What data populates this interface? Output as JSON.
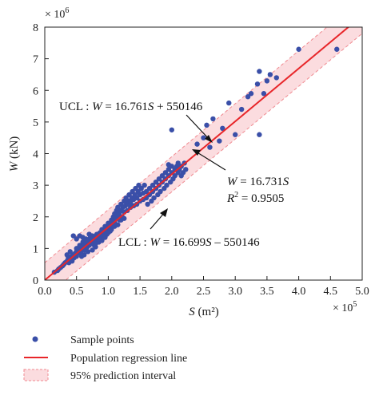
{
  "chart_data": {
    "type": "scatter",
    "x_axis": {
      "label_var": "S",
      "label_unit": "(m²)",
      "range": [
        0.0,
        5.0
      ],
      "ticks": [
        "0.0",
        "0.5",
        "1.0",
        "1.5",
        "2.0",
        "2.5",
        "3.0",
        "3.5",
        "4.0",
        "4.5",
        "5.0"
      ],
      "multiplier": "× 10",
      "multiplier_exp": "5"
    },
    "y_axis": {
      "label_var": "W",
      "label_unit": "(kN)",
      "range": [
        0,
        8
      ],
      "ticks": [
        "0",
        "1",
        "2",
        "3",
        "4",
        "5",
        "6",
        "7",
        "8"
      ],
      "multiplier": "× 10",
      "multiplier_exp": "6"
    },
    "regression": {
      "slope": 1.6731,
      "intercept": 0
    },
    "ucl": {
      "slope": 1.6761,
      "intercept": 0.550146
    },
    "lcl": {
      "slope": 1.6699,
      "intercept": -0.550146
    },
    "points": [
      [
        0.15,
        0.25
      ],
      [
        0.2,
        0.3
      ],
      [
        0.22,
        0.35
      ],
      [
        0.25,
        0.4
      ],
      [
        0.28,
        0.45
      ],
      [
        0.3,
        0.5
      ],
      [
        0.32,
        0.55
      ],
      [
        0.35,
        0.6
      ],
      [
        0.37,
        0.7
      ],
      [
        0.38,
        0.55
      ],
      [
        0.4,
        0.65
      ],
      [
        0.42,
        0.75
      ],
      [
        0.43,
        0.6
      ],
      [
        0.45,
        0.8
      ],
      [
        0.46,
        0.7
      ],
      [
        0.48,
        0.85
      ],
      [
        0.5,
        0.9
      ],
      [
        0.5,
        0.75
      ],
      [
        0.52,
        1.0
      ],
      [
        0.53,
        0.85
      ],
      [
        0.55,
        0.95
      ],
      [
        0.55,
        1.1
      ],
      [
        0.57,
        0.9
      ],
      [
        0.58,
        1.05
      ],
      [
        0.6,
        1.0
      ],
      [
        0.6,
        1.2
      ],
      [
        0.62,
        1.1
      ],
      [
        0.63,
        0.95
      ],
      [
        0.65,
        1.15
      ],
      [
        0.65,
        1.3
      ],
      [
        0.67,
        1.05
      ],
      [
        0.68,
        1.2
      ],
      [
        0.7,
        1.25
      ],
      [
        0.7,
        1.1
      ],
      [
        0.72,
        1.35
      ],
      [
        0.73,
        1.15
      ],
      [
        0.75,
        1.2
      ],
      [
        0.75,
        1.4
      ],
      [
        0.77,
        1.3
      ],
      [
        0.78,
        1.1
      ],
      [
        0.8,
        1.35
      ],
      [
        0.8,
        1.25
      ],
      [
        0.82,
        1.45
      ],
      [
        0.83,
        1.3
      ],
      [
        0.85,
        1.4
      ],
      [
        0.85,
        1.2
      ],
      [
        0.87,
        1.5
      ],
      [
        0.88,
        1.35
      ],
      [
        0.9,
        1.45
      ],
      [
        0.9,
        1.6
      ],
      [
        0.92,
        1.4
      ],
      [
        0.93,
        1.55
      ],
      [
        0.95,
        1.5
      ],
      [
        0.95,
        1.7
      ],
      [
        0.97,
        1.6
      ],
      [
        0.98,
        1.45
      ],
      [
        1.0,
        1.65
      ],
      [
        1.0,
        1.8
      ],
      [
        1.02,
        1.7
      ],
      [
        1.03,
        1.55
      ],
      [
        1.05,
        1.75
      ],
      [
        1.05,
        1.9
      ],
      [
        1.07,
        1.8
      ],
      [
        1.08,
        2.0
      ],
      [
        1.1,
        1.85
      ],
      [
        1.1,
        2.1
      ],
      [
        1.12,
        1.95
      ],
      [
        1.13,
        2.2
      ],
      [
        1.15,
        2.0
      ],
      [
        1.15,
        2.3
      ],
      [
        1.17,
        2.1
      ],
      [
        1.18,
        1.9
      ],
      [
        1.2,
        2.2
      ],
      [
        1.2,
        2.4
      ],
      [
        1.22,
        2.0
      ],
      [
        1.23,
        2.3
      ],
      [
        1.25,
        2.5
      ],
      [
        1.25,
        2.15
      ],
      [
        1.27,
        2.35
      ],
      [
        1.28,
        2.6
      ],
      [
        1.3,
        2.4
      ],
      [
        1.3,
        2.2
      ],
      [
        1.32,
        2.5
      ],
      [
        1.33,
        2.7
      ],
      [
        1.35,
        2.45
      ],
      [
        1.35,
        2.3
      ],
      [
        1.37,
        2.6
      ],
      [
        1.38,
        2.8
      ],
      [
        1.4,
        2.55
      ],
      [
        1.4,
        2.35
      ],
      [
        1.42,
        2.7
      ],
      [
        1.43,
        2.9
      ],
      [
        1.45,
        2.6
      ],
      [
        1.45,
        2.4
      ],
      [
        1.47,
        2.8
      ],
      [
        1.48,
        3.0
      ],
      [
        1.5,
        2.7
      ],
      [
        1.5,
        2.5
      ],
      [
        1.52,
        2.9
      ],
      [
        1.55,
        2.75
      ],
      [
        1.55,
        2.55
      ],
      [
        1.57,
        3.0
      ],
      [
        1.6,
        2.8
      ],
      [
        1.6,
        2.6
      ],
      [
        1.62,
        2.4
      ],
      [
        1.65,
        2.9
      ],
      [
        1.65,
        2.7
      ],
      [
        1.68,
        2.5
      ],
      [
        1.7,
        3.0
      ],
      [
        1.7,
        2.8
      ],
      [
        1.72,
        2.6
      ],
      [
        1.75,
        3.1
      ],
      [
        1.75,
        2.9
      ],
      [
        1.78,
        2.7
      ],
      [
        1.8,
        3.2
      ],
      [
        1.8,
        3.0
      ],
      [
        1.82,
        2.8
      ],
      [
        1.85,
        3.3
      ],
      [
        1.85,
        3.1
      ],
      [
        1.88,
        2.9
      ],
      [
        1.9,
        3.4
      ],
      [
        1.9,
        3.2
      ],
      [
        1.92,
        3.0
      ],
      [
        1.95,
        3.5
      ],
      [
        1.95,
        3.3
      ],
      [
        1.98,
        3.1
      ],
      [
        2.0,
        3.6
      ],
      [
        2.0,
        3.4
      ],
      [
        2.02,
        3.2
      ],
      [
        2.05,
        3.5
      ],
      [
        2.05,
        3.3
      ],
      [
        2.08,
        3.6
      ],
      [
        2.1,
        3.4
      ],
      [
        2.1,
        3.7
      ],
      [
        2.12,
        3.5
      ],
      [
        2.15,
        3.3
      ],
      [
        2.15,
        3.6
      ],
      [
        2.18,
        3.4
      ],
      [
        2.2,
        3.7
      ],
      [
        2.22,
        3.5
      ],
      [
        2.0,
        4.75
      ],
      [
        1.95,
        3.65
      ],
      [
        2.4,
        4.3
      ],
      [
        2.5,
        4.5
      ],
      [
        2.55,
        4.9
      ],
      [
        2.6,
        4.2
      ],
      [
        2.65,
        5.1
      ],
      [
        2.75,
        4.4
      ],
      [
        2.8,
        4.8
      ],
      [
        2.9,
        5.6
      ],
      [
        3.0,
        4.6
      ],
      [
        3.1,
        5.4
      ],
      [
        3.2,
        5.8
      ],
      [
        3.25,
        5.9
      ],
      [
        3.35,
        6.2
      ],
      [
        3.38,
        6.6
      ],
      [
        3.45,
        5.9
      ],
      [
        3.5,
        6.3
      ],
      [
        3.55,
        6.5
      ],
      [
        3.65,
        6.4
      ],
      [
        3.38,
        4.6
      ],
      [
        4.0,
        7.3
      ],
      [
        4.6,
        7.3
      ],
      [
        0.45,
        1.4
      ],
      [
        0.5,
        1.3
      ],
      [
        0.55,
        1.4
      ],
      [
        0.35,
        0.8
      ],
      [
        0.4,
        0.9
      ],
      [
        0.6,
        1.35
      ],
      [
        0.7,
        1.45
      ],
      [
        0.75,
        0.95
      ],
      [
        0.8,
        1.05
      ],
      [
        0.9,
        1.25
      ],
      [
        0.62,
        0.8
      ],
      [
        0.58,
        0.75
      ],
      [
        0.68,
        0.9
      ],
      [
        1.0,
        1.5
      ],
      [
        1.05,
        1.6
      ],
      [
        1.1,
        1.7
      ],
      [
        1.15,
        1.75
      ],
      [
        1.2,
        1.9
      ],
      [
        1.25,
        1.95
      ],
      [
        0.5,
        1.0
      ],
      [
        0.6,
        1.05
      ],
      [
        0.7,
        1.15
      ],
      [
        0.8,
        1.15
      ],
      [
        0.85,
        1.3
      ],
      [
        0.95,
        1.35
      ],
      [
        0.65,
        1.25
      ],
      [
        0.75,
        1.3
      ]
    ],
    "annotations": {
      "ucl": {
        "prefix": "UCL : ",
        "var": "W",
        "mid": " = 16.761",
        "var2": "S",
        "suffix": " + 550146"
      },
      "reg": {
        "var": "W",
        "mid": " = 16.731",
        "var2": "S"
      },
      "r2": {
        "var": "R",
        "sup": "2",
        "suffix": " = 0.9505"
      },
      "lcl": {
        "prefix": "LCL : ",
        "var": "W",
        "mid": " = 16.699",
        "var2": "S",
        "suffix": " – 550146"
      }
    },
    "legend": {
      "position": "bottom-left",
      "items": [
        "Sample points",
        "Population regression line",
        "95% prediction interval"
      ]
    },
    "colors": {
      "points": "#3a4fa8",
      "regression": "#e8262a",
      "band_fill": "#fbdcdf",
      "band_edge": "#f08a90",
      "axis": "#222222"
    }
  }
}
